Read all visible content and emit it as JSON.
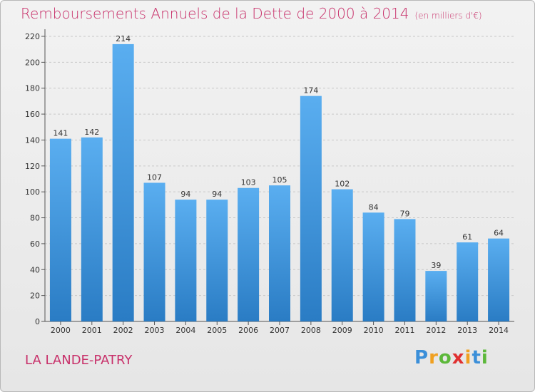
{
  "chart_data": {
    "type": "bar",
    "title": "Remboursements Annuels de la Dette de 2000 à 2014",
    "unit_note": "(en milliers d'€)",
    "categories": [
      "2000",
      "2001",
      "2002",
      "2003",
      "2004",
      "2005",
      "2006",
      "2007",
      "2008",
      "2009",
      "2010",
      "2011",
      "2012",
      "2013",
      "2014"
    ],
    "values": [
      141,
      142,
      214,
      107,
      94,
      94,
      103,
      105,
      174,
      102,
      84,
      79,
      39,
      61,
      64
    ],
    "ylim": [
      0,
      220
    ],
    "yticks": [
      0,
      20,
      40,
      60,
      80,
      100,
      120,
      140,
      160,
      180,
      200,
      220
    ],
    "grid": true,
    "bar_color": "#3a8fd6"
  },
  "commune": "LA LANDE-PATRY",
  "logo": {
    "letters": [
      "P",
      "r",
      "o",
      "x",
      "i",
      "t",
      "i"
    ],
    "colors": [
      "#3b8fd9",
      "#f0a020",
      "#5cb83a",
      "#e03030",
      "#f0a020",
      "#3b8fd9",
      "#5cb83a"
    ]
  }
}
